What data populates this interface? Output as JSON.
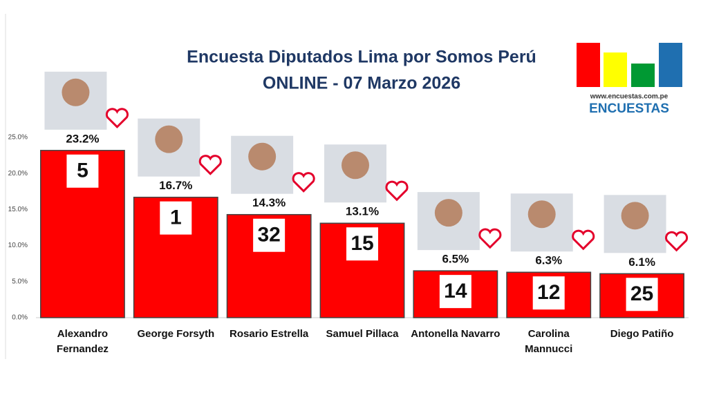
{
  "chart_data": {
    "type": "bar",
    "title": "Encuesta Diputados Lima por Somos Perú",
    "subtitle": "ONLINE - 07 Marzo 2026",
    "logo_url": "www.encuestas.com.pe",
    "logo_name": "ENCUESTAS",
    "categories": [
      "Alexandro Fernandez",
      "George Forsyth",
      "Rosario Estrella",
      "Samuel Pillaca",
      "Antonella Navarro",
      "Carolina Mannucci",
      "Diego Patiño"
    ],
    "values": [
      23.2,
      16.7,
      14.3,
      13.1,
      6.5,
      6.3,
      6.1
    ],
    "value_labels": [
      "23.2%",
      "16.7%",
      "14.3%",
      "13.1%",
      "6.5%",
      "6.3%",
      "6.1%"
    ],
    "list_numbers": [
      "5",
      "1",
      "32",
      "15",
      "14",
      "12",
      "25"
    ],
    "color": "#ff0000",
    "ylim": [
      0,
      25
    ],
    "yticks": [
      {
        "value": 0,
        "label": "0.0%"
      },
      {
        "value": 5,
        "label": "5.0%"
      },
      {
        "value": 10,
        "label": "10.0%"
      },
      {
        "value": 15,
        "label": "15.0%"
      },
      {
        "value": 20,
        "label": "20.0%"
      },
      {
        "value": 25,
        "label": "25.0%"
      }
    ],
    "grid": false
  }
}
